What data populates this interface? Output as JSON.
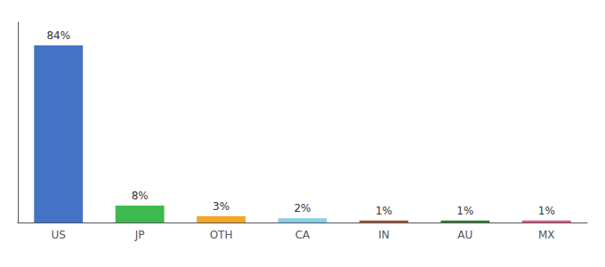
{
  "chart_data": {
    "type": "bar",
    "categories": [
      "US",
      "JP",
      "OTH",
      "CA",
      "IN",
      "AU",
      "MX"
    ],
    "values": [
      84,
      8,
      3,
      2,
      1,
      1,
      1
    ],
    "value_labels": [
      "84%",
      "8%",
      "3%",
      "2%",
      "1%",
      "1%",
      "1%"
    ],
    "colors": [
      "#4472c4",
      "#3dba4e",
      "#f5a623",
      "#87ceeb",
      "#a0522d",
      "#2e7d32",
      "#e75480"
    ],
    "ylim": [
      0,
      95
    ],
    "data_labels": true,
    "tick_labels": "x",
    "grid": false
  }
}
